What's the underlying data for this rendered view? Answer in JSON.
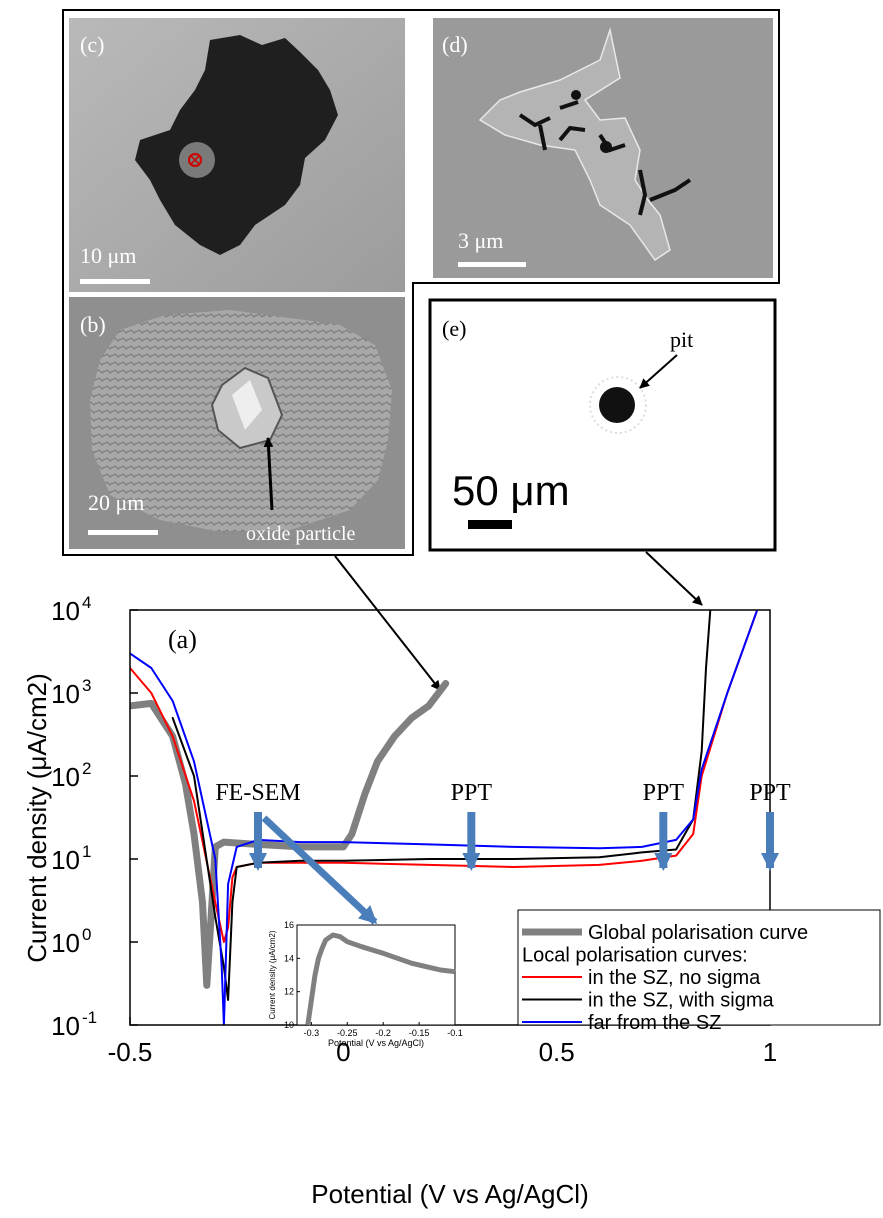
{
  "panels": {
    "c": {
      "label": "(c)",
      "scale": "10 μm"
    },
    "d": {
      "label": "(d)",
      "scale": "3 μm"
    },
    "b": {
      "label": "(b)",
      "scale": "20 μm",
      "annotation": "oxide particle"
    },
    "e": {
      "label": "(e)",
      "scale": "50 μm",
      "annotation": "pit"
    }
  },
  "colors": {
    "global": "#808080",
    "no_sigma": "#ff0000",
    "with_sigma": "#000000",
    "far": "#0000ff",
    "arrow": "#4a7ebb"
  },
  "chart_data": {
    "type": "line",
    "panel_label": "(a)",
    "xlabel": "Potential (V vs Ag/AgCl)",
    "ylabel": "Current density (μA/cm2)",
    "xlim": [
      -0.5,
      1.0
    ],
    "ylim_log10": [
      -1,
      4
    ],
    "yscale": "log",
    "x_ticks": [
      "-0.5",
      "0",
      "0.5",
      "1"
    ],
    "y_ticks": [
      {
        "base": "10",
        "exp": "-1"
      },
      {
        "base": "10",
        "exp": "0"
      },
      {
        "base": "10",
        "exp": "1"
      },
      {
        "base": "10",
        "exp": "2"
      },
      {
        "base": "10",
        "exp": "3"
      },
      {
        "base": "10",
        "exp": "4"
      }
    ],
    "annotations": [
      {
        "text": "FE-SEM",
        "x": -0.2
      },
      {
        "text": "PPT",
        "x": 0.3
      },
      {
        "text": "PPT",
        "x": 0.75
      },
      {
        "text": "PPT",
        "x": 1.0
      }
    ],
    "legend": {
      "position": "bottom-right",
      "entries": [
        {
          "name": "Global polarisation curve",
          "color": "#808080"
        },
        {
          "name": "Local polarisation curves:",
          "header": true
        },
        {
          "name": "in the SZ, no sigma",
          "color": "#ff0000"
        },
        {
          "name": "in the SZ, with sigma",
          "color": "#000000"
        },
        {
          "name": "far from the SZ",
          "color": "#0000ff"
        }
      ]
    },
    "series": [
      {
        "name": "Global polarisation curve",
        "x": [
          -0.5,
          -0.45,
          -0.4,
          -0.37,
          -0.35,
          -0.33,
          -0.32,
          -0.31,
          -0.3,
          -0.28,
          -0.2,
          -0.1,
          0.0,
          0.02,
          0.05,
          0.08,
          0.12,
          0.16,
          0.2,
          0.24
        ],
        "y": [
          700,
          750,
          300,
          80,
          20,
          3,
          0.3,
          2,
          14,
          16,
          15,
          14,
          14,
          20,
          60,
          150,
          300,
          500,
          700,
          1300
        ]
      },
      {
        "name": "in the SZ, no sigma",
        "x": [
          -0.5,
          -0.45,
          -0.4,
          -0.35,
          -0.3,
          -0.28,
          -0.27,
          -0.26,
          -0.25,
          -0.2,
          -0.1,
          0.0,
          0.2,
          0.4,
          0.6,
          0.7,
          0.78,
          0.82,
          0.84,
          0.9,
          0.97
        ],
        "y": [
          2000,
          1000,
          300,
          50,
          3,
          1.0,
          1.5,
          6,
          8,
          9,
          9,
          9,
          8.5,
          8,
          8.5,
          9.5,
          11,
          20,
          100,
          1000,
          10000
        ]
      },
      {
        "name": "in the SZ, with sigma",
        "x": [
          -0.4,
          -0.35,
          -0.3,
          -0.28,
          -0.27,
          -0.26,
          -0.25,
          -0.2,
          -0.1,
          0.0,
          0.2,
          0.4,
          0.6,
          0.7,
          0.78,
          0.82,
          0.84,
          0.85,
          0.86
        ],
        "y": [
          500,
          100,
          2,
          0.5,
          0.2,
          3,
          8,
          9,
          9.5,
          9.5,
          10,
          10,
          10.5,
          12,
          13,
          30,
          200,
          2000,
          10000
        ]
      },
      {
        "name": "far from the SZ",
        "x": [
          -0.5,
          -0.45,
          -0.4,
          -0.35,
          -0.3,
          -0.285,
          -0.28,
          -0.27,
          -0.25,
          -0.2,
          -0.1,
          0.0,
          0.2,
          0.4,
          0.6,
          0.7,
          0.78,
          0.82,
          0.84,
          0.9,
          0.97
        ],
        "y": [
          3000,
          2000,
          800,
          150,
          10,
          0.5,
          0.1,
          5,
          14,
          17,
          16,
          16,
          15,
          14,
          13.5,
          14,
          17,
          30,
          120,
          1000,
          10000
        ]
      }
    ],
    "inset": {
      "type": "line",
      "xlabel": "Potential (V vs Ag/AgCl)",
      "ylabel": "Current density (μA/cm2)",
      "xlim": [
        -0.32,
        -0.1
      ],
      "ylim": [
        10,
        16
      ],
      "x_ticks": [
        "-0.3",
        "-0.25",
        "-0.2",
        "-0.15",
        "-0.1"
      ],
      "y_ticks": [
        "10",
        "12",
        "14",
        "16"
      ],
      "series": [
        {
          "x": [
            -0.305,
            -0.3,
            -0.295,
            -0.29,
            -0.285,
            -0.28,
            -0.27,
            -0.26,
            -0.25,
            -0.23,
            -0.2,
            -0.18,
            -0.16,
            -0.14,
            -0.12,
            -0.1
          ],
          "y": [
            10.0,
            11.5,
            13.0,
            14.0,
            14.6,
            15.1,
            15.4,
            15.3,
            15.0,
            14.7,
            14.3,
            14.0,
            13.7,
            13.5,
            13.3,
            13.2
          ]
        }
      ]
    }
  }
}
